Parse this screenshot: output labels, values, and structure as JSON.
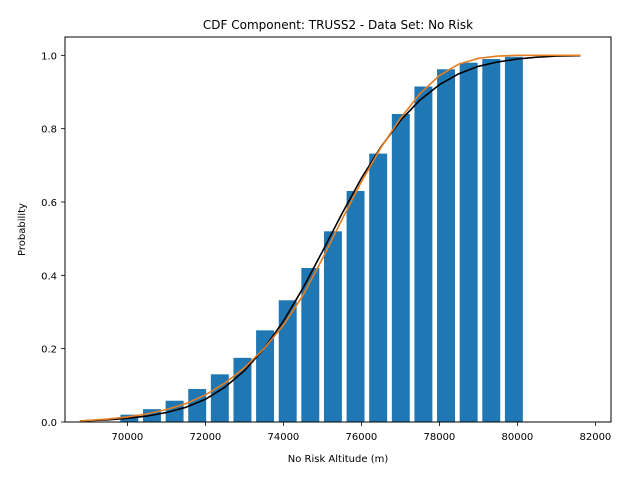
{
  "chart_data": {
    "type": "bar",
    "title": "CDF Component: TRUSS2 - Data Set: No Risk",
    "xlabel": "No Risk Altitude (m)",
    "ylabel": "Probability",
    "xlim": [
      68400,
      82400
    ],
    "ylim": [
      0.0,
      1.05
    ],
    "xticks": [
      70000,
      72000,
      74000,
      76000,
      78000,
      80000,
      82000
    ],
    "yticks": [
      0.0,
      0.2,
      0.4,
      0.6,
      0.8,
      1.0
    ],
    "xtick_labels": [
      "70000",
      "72000",
      "74000",
      "76000",
      "78000",
      "80000",
      "82000"
    ],
    "ytick_labels": [
      "0.0",
      "0.2",
      "0.4",
      "0.6",
      "0.8",
      "1.0"
    ],
    "grid": false,
    "bars": {
      "width": 460,
      "x": [
        70050,
        70630,
        71210,
        71790,
        72370,
        72950,
        73530,
        74110,
        74690,
        75270,
        75850,
        76430,
        77010,
        77590,
        78170,
        78750,
        79330,
        79910
      ],
      "values": [
        0.02,
        0.035,
        0.058,
        0.09,
        0.13,
        0.175,
        0.25,
        0.332,
        0.42,
        0.52,
        0.63,
        0.732,
        0.84,
        0.915,
        0.962,
        0.98,
        0.99,
        0.996
      ]
    },
    "series": [
      {
        "type": "line",
        "color": "#000000",
        "x": [
          68800,
          69500,
          70000,
          70500,
          71000,
          71500,
          72000,
          72500,
          73000,
          73500,
          74000,
          74500,
          75000,
          75500,
          76000,
          76500,
          77000,
          77500,
          78000,
          78500,
          79000,
          79500,
          80000,
          80500,
          81000,
          81600
        ],
        "values": [
          0.003,
          0.006,
          0.01,
          0.016,
          0.026,
          0.04,
          0.062,
          0.095,
          0.14,
          0.2,
          0.275,
          0.365,
          0.465,
          0.568,
          0.665,
          0.75,
          0.822,
          0.878,
          0.92,
          0.95,
          0.97,
          0.982,
          0.99,
          0.995,
          0.998,
          0.999
        ]
      },
      {
        "type": "line",
        "color": "#e37e22",
        "x": [
          68800,
          69500,
          70000,
          70500,
          71000,
          71500,
          72000,
          72500,
          73000,
          73500,
          74000,
          74500,
          75000,
          75500,
          76000,
          76500,
          77000,
          77500,
          78000,
          78500,
          79000,
          79500,
          80000,
          80500,
          81000,
          81600
        ],
        "values": [
          0.003,
          0.008,
          0.014,
          0.022,
          0.034,
          0.05,
          0.074,
          0.106,
          0.148,
          0.2,
          0.264,
          0.345,
          0.445,
          0.552,
          0.655,
          0.748,
          0.828,
          0.895,
          0.945,
          0.976,
          0.992,
          0.998,
          1.0,
          1.0,
          1.0,
          1.0
        ]
      }
    ],
    "colors": {
      "bars": "#1f77b4",
      "axes": "#000000"
    }
  }
}
